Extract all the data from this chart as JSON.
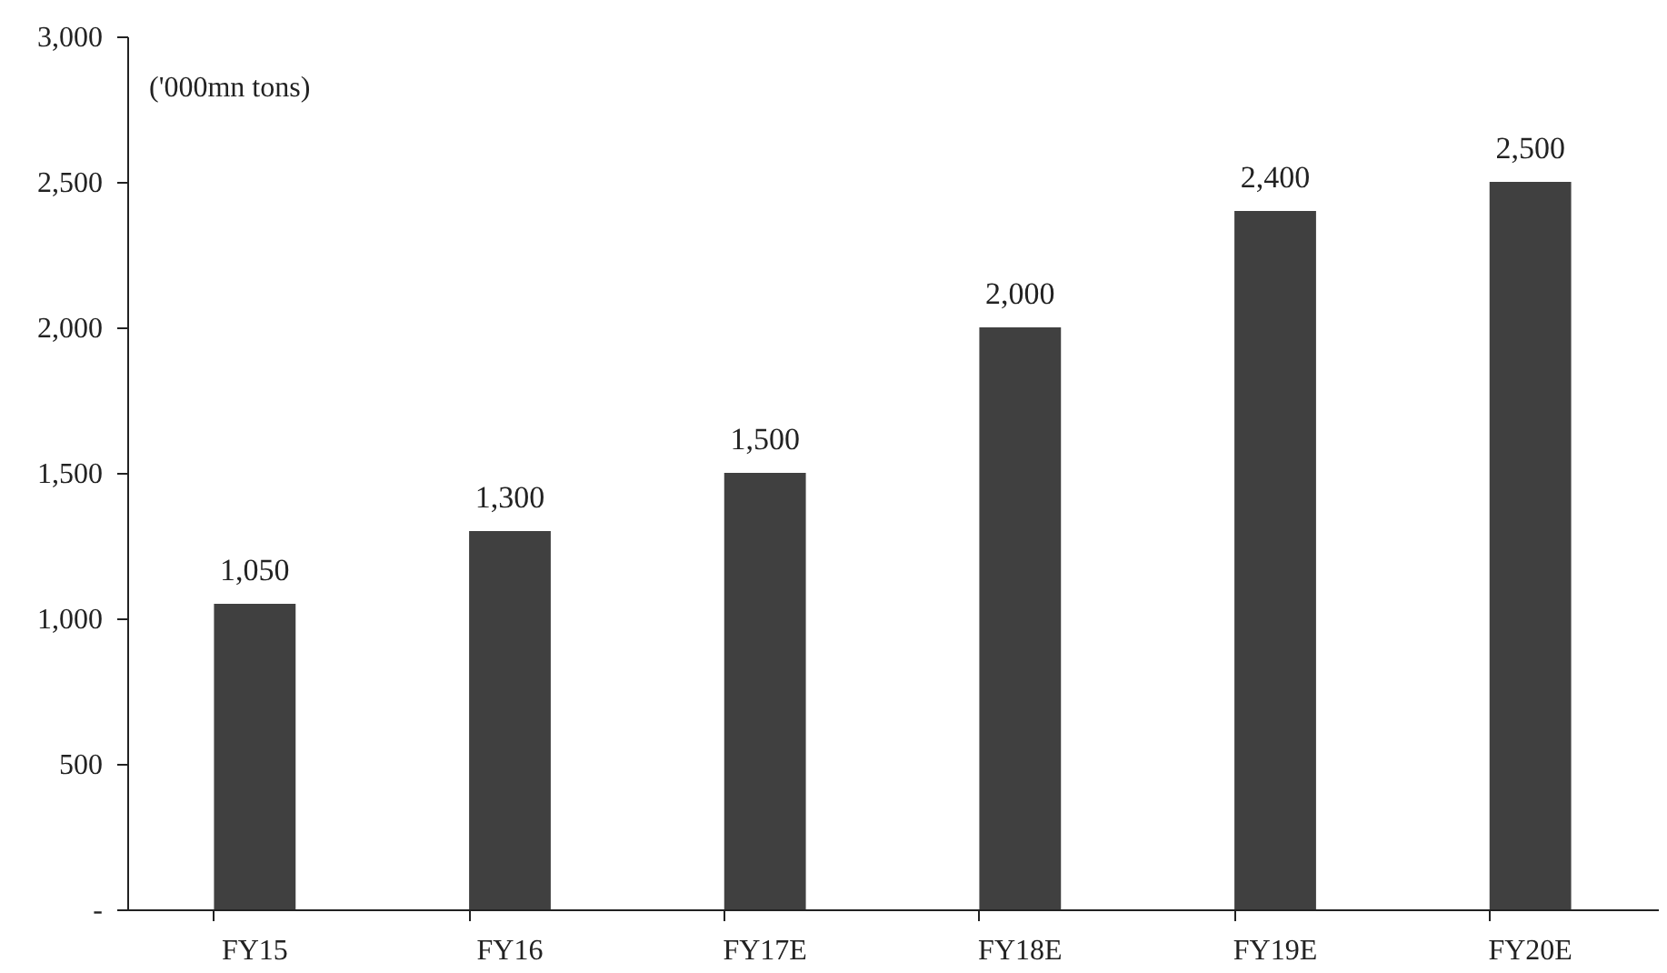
{
  "chart_data": {
    "type": "bar",
    "categories": [
      "FY15",
      "FY16",
      "FY17E",
      "FY18E",
      "FY19E",
      "FY20E"
    ],
    "values": [
      1050,
      1300,
      1500,
      2000,
      2400,
      2500
    ],
    "value_labels": [
      "1,050",
      "1,300",
      "1,500",
      "2,000",
      "2,400",
      "2,500"
    ],
    "color": "#404040",
    "ylim": [
      0,
      3000
    ],
    "yticks": [
      {
        "value": 0,
        "label": "-"
      },
      {
        "value": 500,
        "label": "500"
      },
      {
        "value": 1000,
        "label": "1,000"
      },
      {
        "value": 1500,
        "label": "1,500"
      },
      {
        "value": 2000,
        "label": "2,000"
      },
      {
        "value": 2500,
        "label": "2,500"
      },
      {
        "value": 3000,
        "label": "3,000"
      }
    ],
    "annotations": [
      "('000mn tons)"
    ],
    "grid": false
  }
}
